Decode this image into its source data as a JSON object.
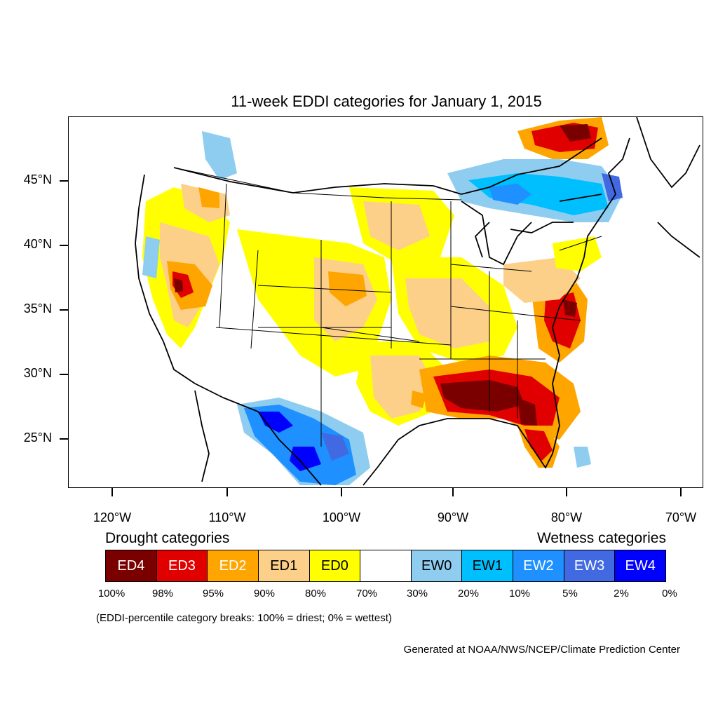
{
  "title": "11-week EDDI categories for January 1, 2015",
  "y_axis": [
    "45°N",
    "40°N",
    "35°N",
    "30°N",
    "25°N"
  ],
  "x_axis": [
    "120°W",
    "110°W",
    "100°W",
    "90°W",
    "80°W",
    "70°W"
  ],
  "legend": {
    "drought_heading": "Drought categories",
    "wetness_heading": "Wetness categories",
    "categories": [
      {
        "label": "ED4",
        "color": "#7a0000"
      },
      {
        "label": "ED3",
        "color": "#e10000"
      },
      {
        "label": "ED2",
        "color": "#ffa500"
      },
      {
        "label": "ED1",
        "color": "#fdd08a"
      },
      {
        "label": "ED0",
        "color": "#ffff00"
      },
      {
        "label": "",
        "color": "#ffffff"
      },
      {
        "label": "EW0",
        "color": "#8ecdf0"
      },
      {
        "label": "EW1",
        "color": "#00bfff"
      },
      {
        "label": "EW2",
        "color": "#1e90ff"
      },
      {
        "label": "EW3",
        "color": "#4169e1"
      },
      {
        "label": "EW4",
        "color": "#0000ff"
      }
    ],
    "breaks": [
      "100%",
      "98%",
      "95%",
      "90%",
      "80%",
      "70%",
      "30%",
      "20%",
      "10%",
      "5%",
      "2%",
      "0%"
    ]
  },
  "note": "(EDDI-percentile category breaks: 100% = driest; 0% = wettest)",
  "credit": "Generated at NOAA/NWS/NCEP/Climate Prediction Center"
}
